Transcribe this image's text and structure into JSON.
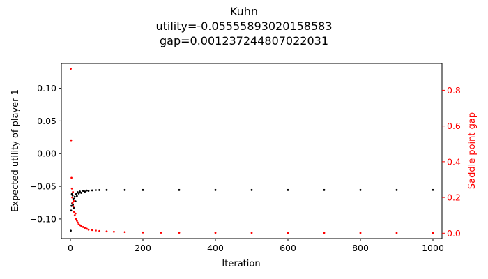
{
  "chart_data": {
    "type": "scatter",
    "title_lines": [
      "Kuhn",
      "utility=-0.05555893020158583",
      "gap=0.001237244807022031"
    ],
    "xlabel": "Iteration",
    "ylabel_left": "Expected utility of player 1",
    "ylabel_right": "Saddle point gap",
    "xlim": [
      -25,
      1025
    ],
    "ylim_left": [
      -0.13,
      0.138
    ],
    "ylim_right": [
      -0.03,
      0.95
    ],
    "x_ticks": [
      0,
      200,
      400,
      600,
      800,
      1000
    ],
    "y_ticks_left": [
      -0.1,
      -0.05,
      0.0,
      0.05,
      0.1
    ],
    "y_ticks_right": [
      0.0,
      0.2,
      0.4,
      0.6,
      0.8
    ],
    "x_tick_labels": [
      "0",
      "200",
      "400",
      "600",
      "800",
      "1000"
    ],
    "y_tick_labels_left": [
      "−0.10",
      "−0.05",
      "0.00",
      "0.05",
      "0.10"
    ],
    "y_tick_labels_right": [
      "0.0",
      "0.2",
      "0.4",
      "0.6",
      "0.8"
    ],
    "grid": false,
    "colors": {
      "utility": "#000000",
      "gap": "#ff0000"
    },
    "series": [
      {
        "axis": "left",
        "x": [
          1,
          2,
          3,
          4,
          5,
          6,
          7,
          8,
          9,
          10,
          12,
          14,
          16,
          18,
          20,
          23,
          26,
          30,
          35,
          40,
          45,
          50,
          60,
          70,
          80,
          100,
          150,
          200,
          300,
          400,
          500,
          600,
          700,
          800,
          900,
          1000
        ],
        "y": [
          -0.118,
          -0.087,
          -0.08,
          -0.062,
          -0.076,
          -0.064,
          -0.078,
          -0.07,
          -0.083,
          -0.069,
          -0.066,
          -0.073,
          -0.062,
          -0.065,
          -0.059,
          -0.061,
          -0.058,
          -0.06,
          -0.057,
          -0.058,
          -0.0565,
          -0.057,
          -0.0562,
          -0.0558,
          -0.0557,
          -0.0556,
          -0.0556,
          -0.0556,
          -0.0556,
          -0.0556,
          -0.0556,
          -0.0556,
          -0.0556,
          -0.0556,
          -0.0556,
          -0.05556
        ]
      },
      {
        "axis": "right",
        "x": [
          1,
          2,
          3,
          4,
          5,
          6,
          7,
          8,
          9,
          10,
          12,
          14,
          16,
          18,
          20,
          23,
          26,
          30,
          35,
          40,
          45,
          50,
          60,
          70,
          80,
          100,
          120,
          150,
          200,
          250,
          300,
          400,
          500,
          600,
          700,
          800,
          900,
          1000
        ],
        "y": [
          0.92,
          0.52,
          0.31,
          0.25,
          0.2,
          0.17,
          0.23,
          0.15,
          0.18,
          0.12,
          0.1,
          0.11,
          0.08,
          0.07,
          0.06,
          0.05,
          0.045,
          0.04,
          0.035,
          0.03,
          0.025,
          0.02,
          0.018,
          0.015,
          0.012,
          0.01,
          0.008,
          0.006,
          0.004,
          0.003,
          0.0025,
          0.002,
          0.0018,
          0.0016,
          0.0015,
          0.0014,
          0.0013,
          0.001237
        ]
      }
    ]
  }
}
